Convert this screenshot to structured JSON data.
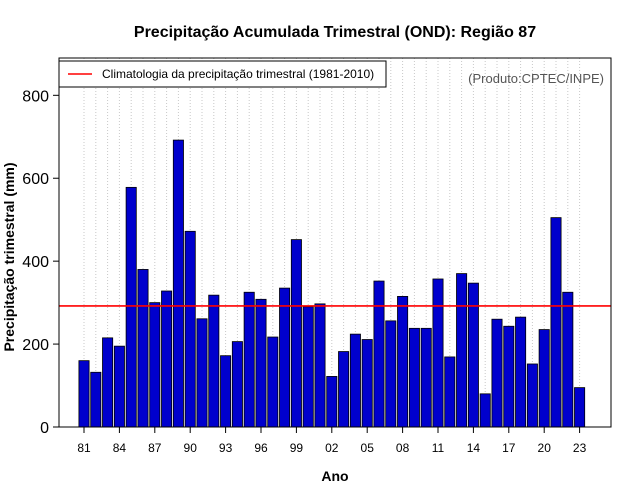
{
  "chart_data": {
    "type": "bar",
    "title": "Precipitação Acumulada Trimestral (OND): Região 87",
    "xlabel": "Ano",
    "ylabel": "Precipitação trimestral (mm)",
    "ylim": [
      0,
      890
    ],
    "yticks": [
      0,
      200,
      400,
      600,
      800
    ],
    "grid": "vertical dotted",
    "years": [
      1981,
      1982,
      1983,
      1984,
      1985,
      1986,
      1987,
      1988,
      1989,
      1990,
      1991,
      1992,
      1993,
      1994,
      1995,
      1996,
      1997,
      1998,
      1999,
      2000,
      2001,
      2002,
      2003,
      2004,
      2005,
      2006,
      2007,
      2008,
      2009,
      2010,
      2011,
      2012,
      2013,
      2014,
      2015,
      2016,
      2017,
      2018,
      2019,
      2020,
      2021,
      2022,
      2023
    ],
    "tick_labels": [
      "81",
      "84",
      "87",
      "90",
      "93",
      "96",
      "99",
      "02",
      "05",
      "08",
      "11",
      "14",
      "17",
      "20",
      "23"
    ],
    "tick_years": [
      1981,
      1984,
      1987,
      1990,
      1993,
      1996,
      1999,
      2002,
      2005,
      2008,
      2011,
      2014,
      2017,
      2020,
      2023
    ],
    "values": [
      160,
      132,
      215,
      195,
      578,
      380,
      300,
      328,
      692,
      472,
      261,
      318,
      172,
      206,
      325,
      308,
      217,
      335,
      452,
      290,
      297,
      122,
      182,
      224,
      211,
      352,
      256,
      315,
      238,
      238,
      357,
      169,
      370,
      347,
      80,
      260,
      243,
      265,
      152,
      235,
      505,
      325,
      95
    ],
    "bar_color": "#0000cd",
    "climatology": {
      "value": 292,
      "color": "#ff0000",
      "label": "Climatologia da precipitação trimestral (1981-2010)"
    },
    "legend_position": "top-left",
    "credit": "(Produto:CPTEC/INPE)"
  }
}
